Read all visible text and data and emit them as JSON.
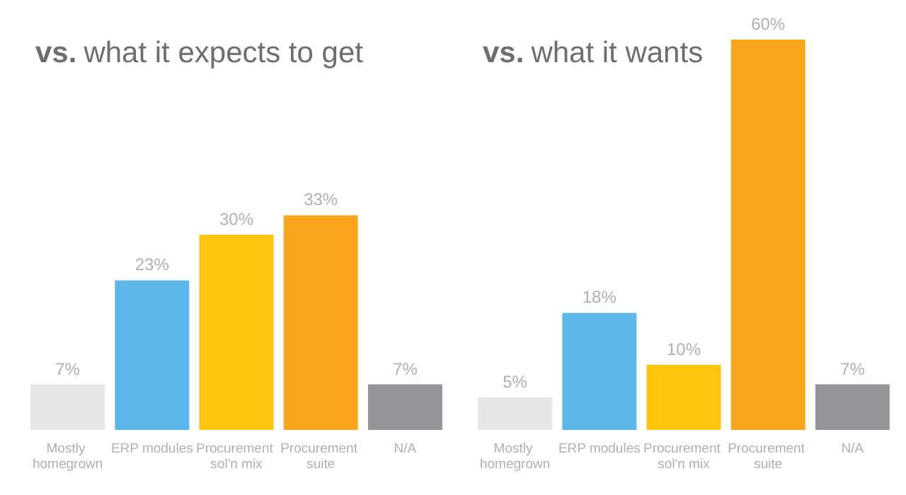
{
  "chart_data": [
    {
      "type": "bar",
      "title": "vs. what it expects to get",
      "categories": [
        "Mostly homegrown",
        "ERP modules",
        "Procurement sol'n mix",
        "Procurement suite",
        "N/A"
      ],
      "values": [
        7,
        23,
        30,
        33,
        7
      ],
      "value_labels": [
        "7%",
        "23%",
        "30%",
        "33%",
        "7%"
      ],
      "colors": [
        "#e6e6e6",
        "#5cb9e9",
        "#ffc40c",
        "#f9a61c",
        "#939598"
      ],
      "tick_labels": false
    },
    {
      "type": "bar",
      "title": "vs. what it wants",
      "categories": [
        "Mostly homegrown",
        "ERP modules",
        "Procurement sol'n mix",
        "Procurement suite",
        "N/A"
      ],
      "values": [
        5,
        18,
        10,
        60,
        7
      ],
      "value_labels": [
        "5%",
        "18%",
        "10%",
        "60%",
        "7%"
      ],
      "colors": [
        "#e6e6e6",
        "#5cb9e9",
        "#ffc40c",
        "#f9a61c",
        "#939598"
      ],
      "tick_labels": false
    }
  ]
}
